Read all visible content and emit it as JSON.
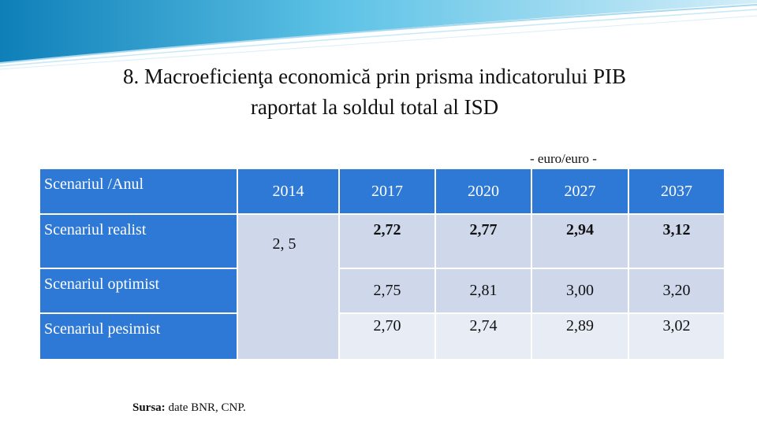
{
  "slide": {
    "title": "8. Macroeficienţa economică prin prisma indicatorului PIB raportat la soldul total al ISD",
    "unit": "- euro/euro -"
  },
  "table": {
    "header_label": "Scenariul /Anul",
    "years": [
      "2014",
      "2017",
      "2020",
      "2027",
      "2037"
    ],
    "base_value": "2, 5",
    "rows": [
      {
        "label": "Scenariul realist",
        "values": [
          "2,72",
          "2,77",
          "2,94",
          "3,12"
        ]
      },
      {
        "label": "Scenariul optimist",
        "values": [
          "2,75",
          "2,81",
          "3,00",
          "3,20"
        ]
      },
      {
        "label": "Scenariul pesimist",
        "values": [
          "2,70",
          "2,74",
          "2,89",
          "3,02"
        ]
      }
    ]
  },
  "source": {
    "label": "Sursa:",
    "text": "date BNR, CNP."
  },
  "colors": {
    "header_blue": "#2e78d6",
    "cell_light": "#cfd8eb",
    "cell_lighter": "#e7ecf5"
  }
}
